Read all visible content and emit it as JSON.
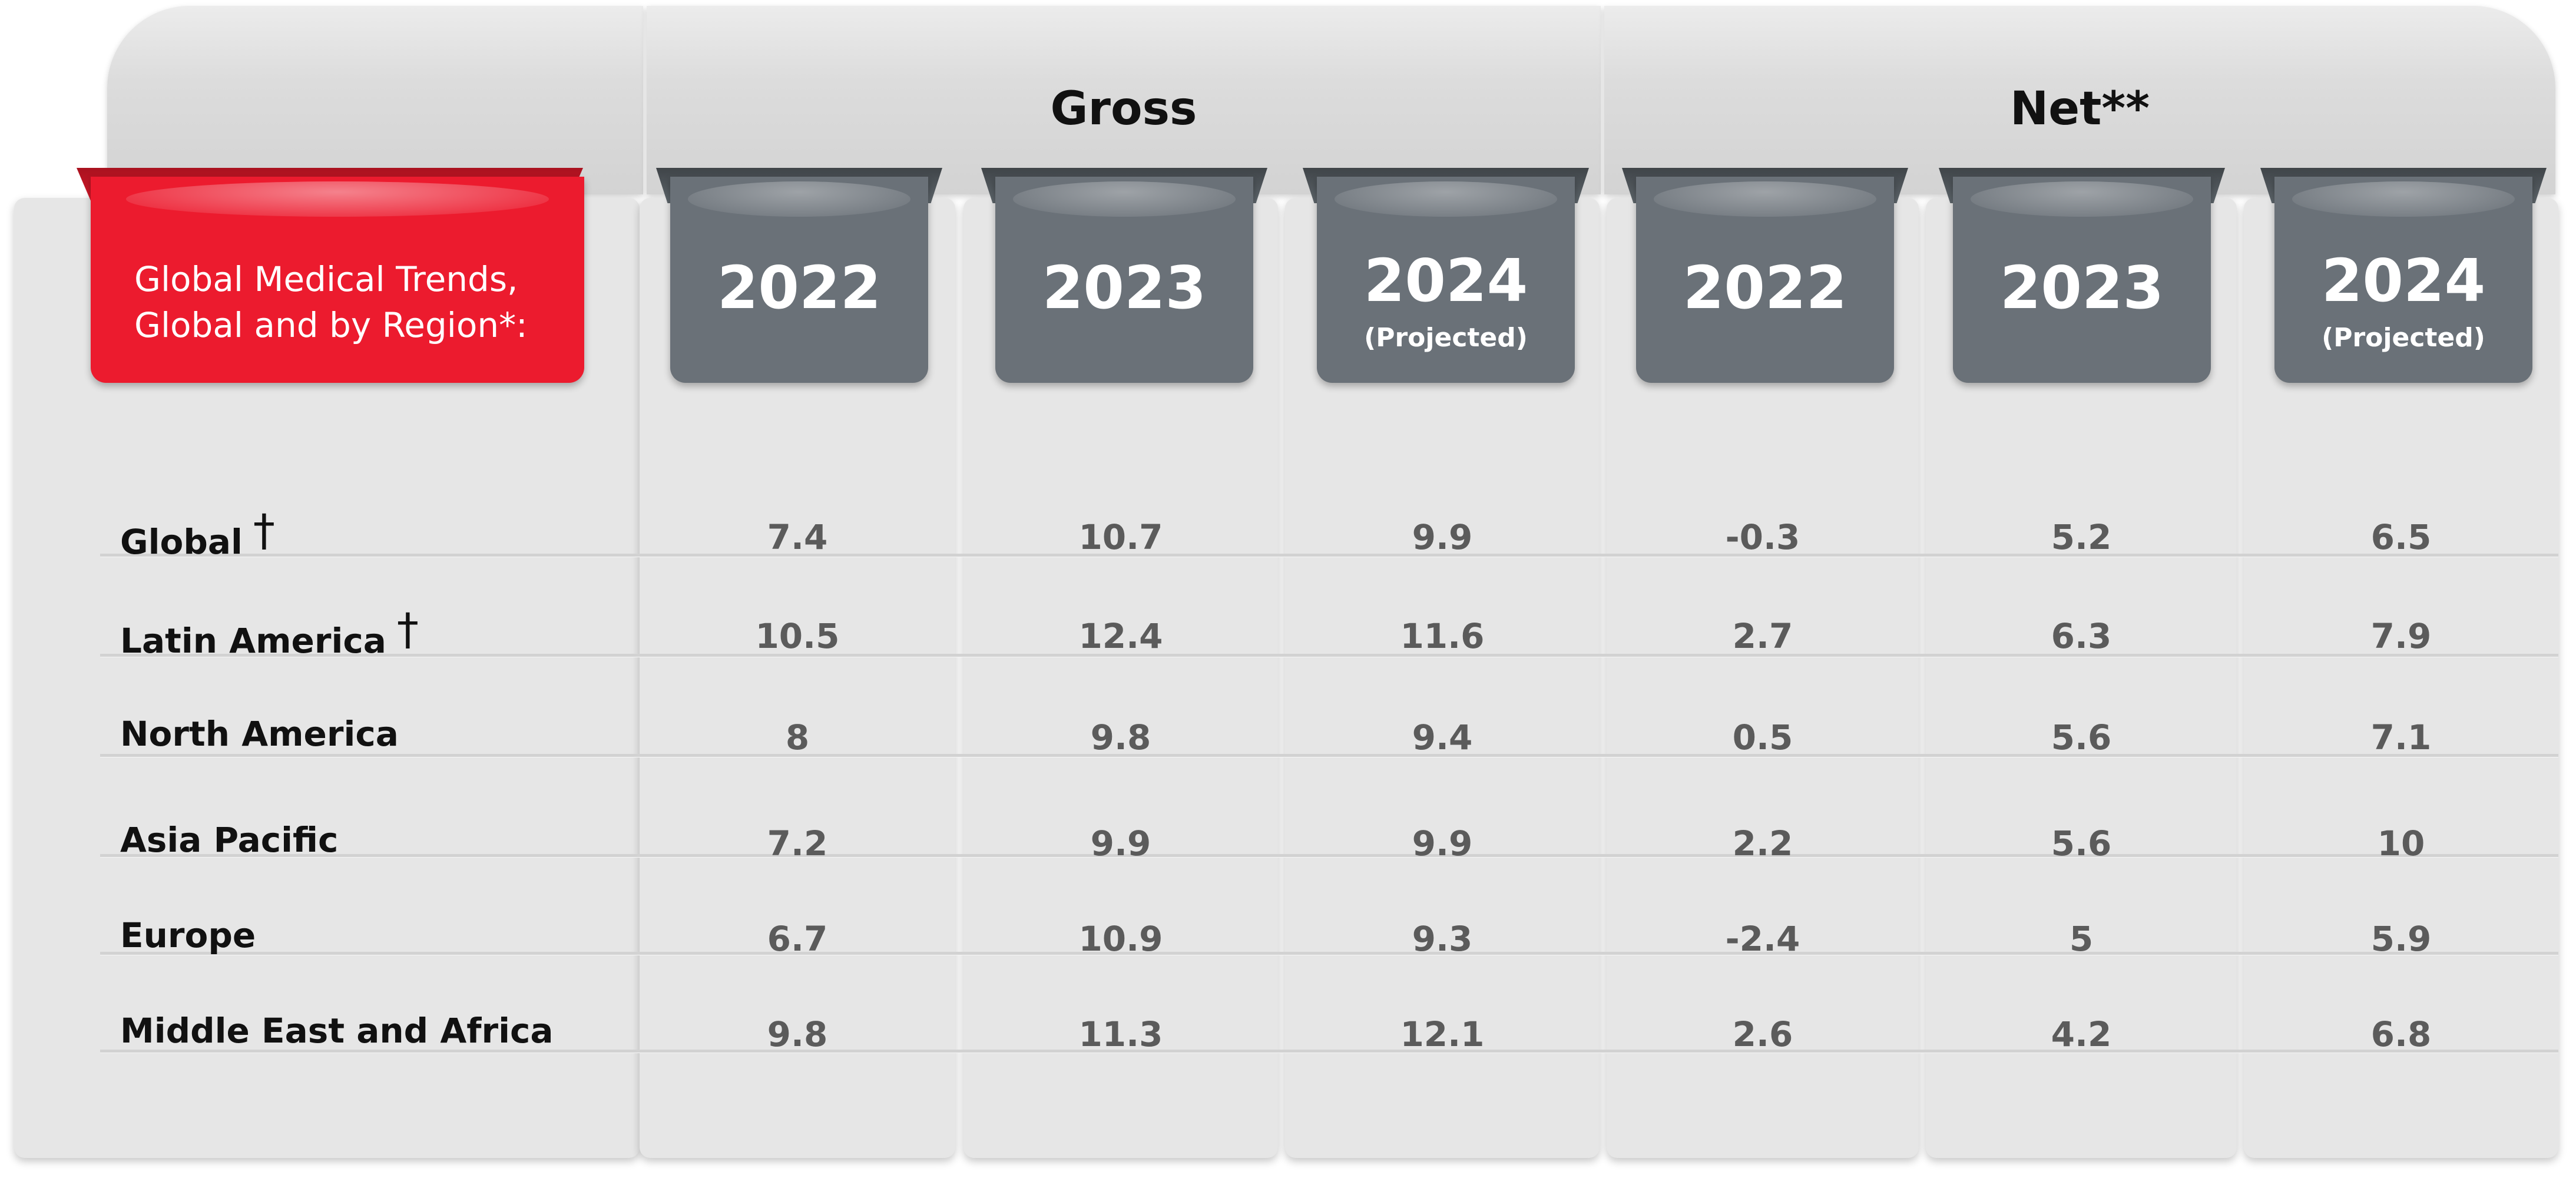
{
  "title_lines": [
    "Global Medical Trends,",
    "Global and by Region*:"
  ],
  "groups": {
    "gross": "Gross",
    "net": "Net**"
  },
  "columns": [
    {
      "group": "Gross",
      "year": "2022",
      "note": ""
    },
    {
      "group": "Gross",
      "year": "2023",
      "note": ""
    },
    {
      "group": "Gross",
      "year": "2024",
      "note": "(Projected)"
    },
    {
      "group": "Net**",
      "year": "2022",
      "note": ""
    },
    {
      "group": "Net**",
      "year": "2023",
      "note": ""
    },
    {
      "group": "Net**",
      "year": "2024",
      "note": "(Projected)"
    }
  ],
  "rows": [
    {
      "region": "Global",
      "dagger": "†",
      "values": [
        "7.4",
        "10.7",
        "9.9",
        "-0.3",
        "5.2",
        "6.5"
      ]
    },
    {
      "region": "Latin America",
      "dagger": "†",
      "values": [
        "10.5",
        "12.4",
        "11.6",
        "2.7",
        "6.3",
        "7.9"
      ]
    },
    {
      "region": "North America",
      "dagger": "",
      "values": [
        "8",
        "9.8",
        "9.4",
        "0.5",
        "5.6",
        "7.1"
      ]
    },
    {
      "region": "Asia Pacific",
      "dagger": "",
      "values": [
        "7.2",
        "9.9",
        "9.9",
        "2.2",
        "5.6",
        "10"
      ]
    },
    {
      "region": "Europe",
      "dagger": "",
      "values": [
        "6.7",
        "10.9",
        "9.3",
        "-2.4",
        "5",
        "5.9"
      ]
    },
    {
      "region": "Middle East and Africa",
      "dagger": "",
      "values": [
        "9.8",
        "11.3",
        "12.1",
        "2.6",
        "4.2",
        "6.8"
      ]
    }
  ],
  "colors": {
    "title_tab": "#ec1b2e",
    "year_tab": "#6a7178",
    "panel": "#e6e6e6",
    "value_text": "#5b5b5b"
  },
  "chart_data": {
    "type": "table",
    "title": "Global Medical Trends, Global and by Region*:",
    "column_groups": [
      "Gross",
      "Net**"
    ],
    "columns": [
      "2022",
      "2023",
      "2024 (Projected)",
      "2022",
      "2023",
      "2024 (Projected)"
    ],
    "categories": [
      "Global",
      "Latin America",
      "North America",
      "Asia Pacific",
      "Europe",
      "Middle East and Africa"
    ],
    "series": [
      {
        "name": "Gross 2022",
        "values": [
          7.4,
          10.5,
          8,
          7.2,
          6.7,
          9.8
        ]
      },
      {
        "name": "Gross 2023",
        "values": [
          10.7,
          12.4,
          9.8,
          9.9,
          10.9,
          11.3
        ]
      },
      {
        "name": "Gross 2024 (Projected)",
        "values": [
          9.9,
          11.6,
          9.4,
          9.9,
          9.3,
          12.1
        ]
      },
      {
        "name": "Net 2022",
        "values": [
          -0.3,
          2.7,
          0.5,
          2.2,
          -2.4,
          2.6
        ]
      },
      {
        "name": "Net 2023",
        "values": [
          5.2,
          6.3,
          5.6,
          5.6,
          5,
          4.2
        ]
      },
      {
        "name": "Net 2024 (Projected)",
        "values": [
          6.5,
          7.9,
          7.1,
          10,
          5.9,
          6.8
        ]
      }
    ]
  }
}
